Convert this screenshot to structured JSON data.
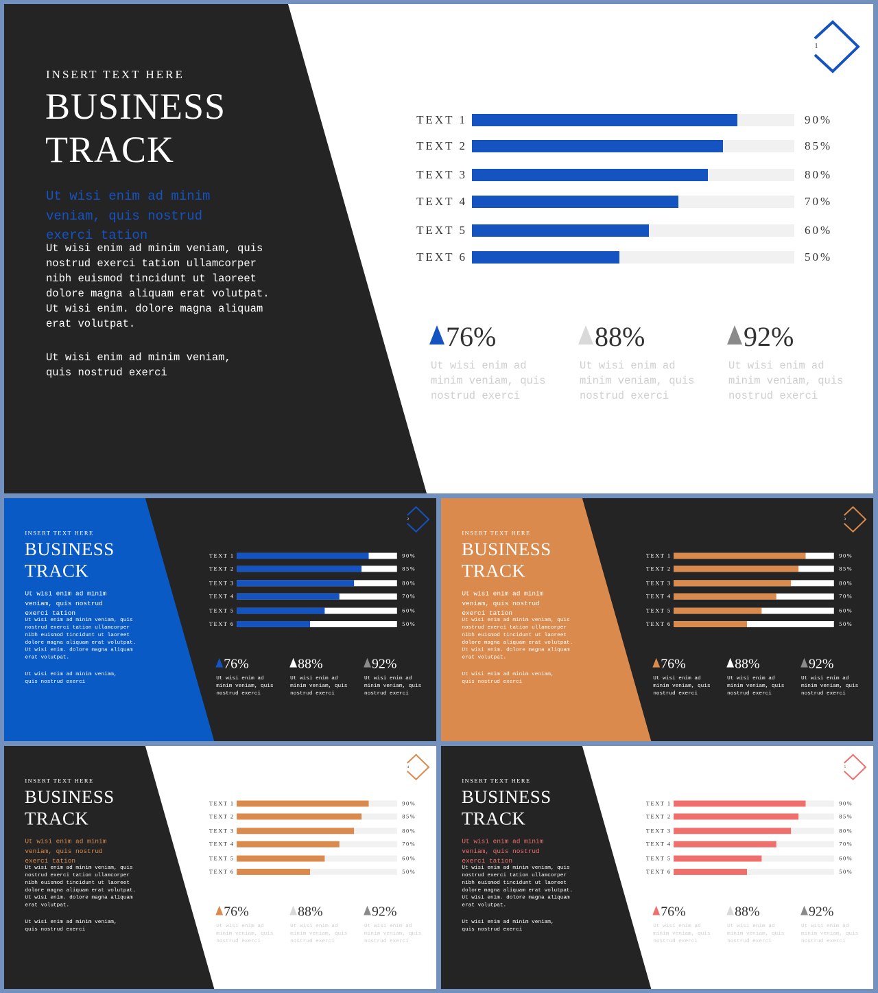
{
  "eyebrow": "INSERT TEXT HERE",
  "title_line1": "BUSINESS",
  "title_line2": "TRACK",
  "accent_text": "Ut wisi enim ad minim veniam, quis nostrud exerci tation",
  "body_text": "Ut wisi enim ad minim veniam, quis nostrud exerci tation ullamcorper nibh euismod tincidunt ut laoreet dolore magna aliquam erat volutpat. Ut wisi enim. dolore magna aliquam erat volutpat.",
  "body_text_2": "Ut wisi enim ad minim veniam, quis nostrud exerci",
  "bars": [
    {
      "label": "TEXT 1",
      "value": 90,
      "value_label": "90%"
    },
    {
      "label": "TEXT 2",
      "value": 85,
      "value_label": "85%"
    },
    {
      "label": "TEXT 3",
      "value": 80,
      "value_label": "80%"
    },
    {
      "label": "TEXT 4",
      "value": 70,
      "value_label": "70%"
    },
    {
      "label": "TEXT 5",
      "value": 60,
      "value_label": "60%"
    },
    {
      "label": "TEXT 6",
      "value": 50,
      "value_label": "50%"
    }
  ],
  "stats": [
    {
      "value": "76%",
      "text": "Ut wisi enim ad minim veniam, quis nostrud exerci"
    },
    {
      "value": "88%",
      "text": "Ut wisi enim ad minim veniam, quis nostrud exerci"
    },
    {
      "value": "92%",
      "text": "Ut wisi enim ad minim veniam, quis nostrud exerci"
    }
  ],
  "slides": [
    {
      "number": "1",
      "accent": "#1553c1",
      "left_color": "#242424",
      "right_color": "#ffffff",
      "text_color": "#ffffff",
      "bar_fill": "#1553c1",
      "bar_track": "#f1f1f1",
      "right_text": "#333333",
      "stat_text": "#cfcfcf",
      "tri_colors": [
        "#1553c1",
        "#d9d9d9",
        "#8a8a8a"
      ],
      "accent_text_color": "#1553c1",
      "badge_color": "#1553c1"
    },
    {
      "number": "2",
      "accent": "#0a5ac6",
      "left_color": "#0a5ac6",
      "right_color": "#242424",
      "text_color": "#ffffff",
      "bar_fill": "#1553c1",
      "bar_track": "#ffffff",
      "right_text": "#ffffff",
      "stat_text": "#ffffff",
      "tri_colors": [
        "#1553c1",
        "#ffffff",
        "#8a8a8a"
      ],
      "accent_text_color": "#ffffff",
      "badge_color": "#1553c1"
    },
    {
      "number": "3",
      "accent": "#d98a4c",
      "left_color": "#d98a4c",
      "right_color": "#242424",
      "text_color": "#ffffff",
      "bar_fill": "#d98a4c",
      "bar_track": "#ffffff",
      "right_text": "#ffffff",
      "stat_text": "#ffffff",
      "tri_colors": [
        "#d98a4c",
        "#ffffff",
        "#8a8a8a"
      ],
      "accent_text_color": "#ffffff",
      "badge_color": "#d98a4c"
    },
    {
      "number": "4",
      "accent": "#d98a4c",
      "left_color": "#242424",
      "right_color": "#ffffff",
      "text_color": "#ffffff",
      "bar_fill": "#d98a4c",
      "bar_track": "#f1f1f1",
      "right_text": "#333333",
      "stat_text": "#cfcfcf",
      "tri_colors": [
        "#d98a4c",
        "#d9d9d9",
        "#8a8a8a"
      ],
      "accent_text_color": "#d98a4c",
      "badge_color": "#d98a4c"
    },
    {
      "number": "5",
      "accent": "#ef6f6c",
      "left_color": "#242424",
      "right_color": "#ffffff",
      "text_color": "#ffffff",
      "bar_fill": "#ef6f6c",
      "bar_track": "#f1f1f1",
      "right_text": "#333333",
      "stat_text": "#cfcfcf",
      "tri_colors": [
        "#ef6f6c",
        "#d9d9d9",
        "#8a8a8a"
      ],
      "accent_text_color": "#ef6f6c",
      "badge_color": "#ef6f6c"
    }
  ]
}
